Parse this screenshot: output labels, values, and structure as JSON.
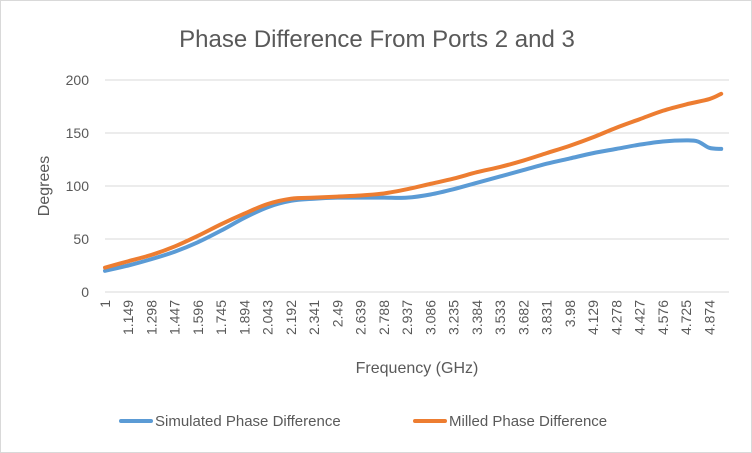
{
  "chart_data": {
    "type": "line",
    "title": "Phase Difference From Ports 2 and 3",
    "xlabel": "Frequency (GHz)",
    "ylabel": "Degrees",
    "ylim": [
      0,
      200
    ],
    "yticks": [
      0,
      50,
      100,
      150,
      200
    ],
    "grid": true,
    "legend_position": "bottom",
    "categories": [
      "1",
      "1.149",
      "1.298",
      "1.447",
      "1.596",
      "1.745",
      "1.894",
      "2.043",
      "2.192",
      "2.341",
      "2.49",
      "2.639",
      "2.788",
      "2.937",
      "3.086",
      "3.235",
      "3.384",
      "3.533",
      "3.682",
      "3.831",
      "3.98",
      "4.129",
      "4.278",
      "4.427",
      "4.576",
      "4.725",
      "4.874"
    ],
    "x_extent": [
      1.0,
      5.0
    ],
    "series": [
      {
        "name": "Simulated Phase Difference",
        "color": "#5b9bd5",
        "x": [
          1.0,
          1.149,
          1.298,
          1.447,
          1.596,
          1.745,
          1.894,
          2.043,
          2.192,
          2.341,
          2.49,
          2.639,
          2.788,
          2.937,
          3.086,
          3.235,
          3.384,
          3.533,
          3.682,
          3.831,
          3.98,
          4.129,
          4.278,
          4.427,
          4.576,
          4.725,
          4.8,
          4.874,
          4.95
        ],
        "values": [
          20,
          25,
          31,
          38,
          47,
          58,
          70,
          80,
          86,
          88,
          89,
          89,
          89,
          89,
          92,
          97,
          103,
          109,
          115,
          121,
          126,
          131,
          135,
          139,
          142,
          143,
          142,
          136,
          135
        ]
      },
      {
        "name": "Milled Phase Difference",
        "color": "#ed7d31",
        "x": [
          1.0,
          1.149,
          1.298,
          1.447,
          1.596,
          1.745,
          1.894,
          2.043,
          2.192,
          2.341,
          2.49,
          2.639,
          2.788,
          2.937,
          3.086,
          3.235,
          3.384,
          3.533,
          3.682,
          3.831,
          3.98,
          4.129,
          4.278,
          4.427,
          4.576,
          4.725,
          4.874,
          4.95
        ],
        "values": [
          23,
          29,
          35,
          43,
          53,
          64,
          74,
          83,
          88,
          89,
          90,
          91,
          93,
          97,
          102,
          107,
          113,
          118,
          124,
          131,
          138,
          146,
          155,
          163,
          171,
          177,
          182,
          187
        ]
      }
    ]
  }
}
